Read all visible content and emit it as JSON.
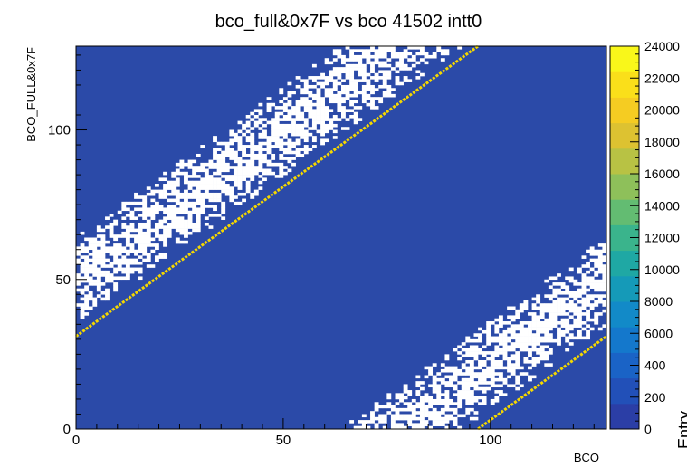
{
  "chart_data": {
    "type": "heatmap",
    "title": "bco_full&0x7F vs bco 41502 intt0",
    "xlabel": "BCO",
    "ylabel": "BCO_FULL&0x7F",
    "xlim": [
      0,
      128
    ],
    "ylim": [
      0,
      128
    ],
    "x_ticks": [
      "0",
      "50",
      "100"
    ],
    "y_ticks": [
      "0",
      "50",
      "100"
    ],
    "z_ticks": [
      "0",
      "200",
      "400",
      "6000",
      "8000",
      "10000",
      "12000",
      "14000",
      "16000",
      "18000",
      "20000",
      "22000",
      "24000"
    ],
    "zlim": [
      0,
      24000
    ],
    "z_label": "Entry",
    "background_color": "#2b4aa8",
    "empty_bin_color": "#ffffff",
    "peak_color": "#f5d800",
    "bands": [
      {
        "name": "",
        "x_start": 0,
        "x_end": 97,
        "y_offset": 31,
        "value": 24000
      },
      {
        "name": "",
        "x_start": 97,
        "x_end": 128,
        "y_offset": -97,
        "value": 24000
      }
    ],
    "white_regions": [
      {
        "y_offset_min": 35,
        "y_offset_max": 64
      },
      {
        "y_offset_min": -93,
        "y_offset_max": -64
      }
    ],
    "colormap": [
      "#2b3ea6",
      "#2250b8",
      "#1a63c6",
      "#1478cc",
      "#128ac8",
      "#159ab8",
      "#1fa8a4",
      "#3ab48c",
      "#63bc72",
      "#8ec05a",
      "#b8c244",
      "#ddc231",
      "#f5cc22",
      "#fadf1a",
      "#f9f71a"
    ]
  }
}
